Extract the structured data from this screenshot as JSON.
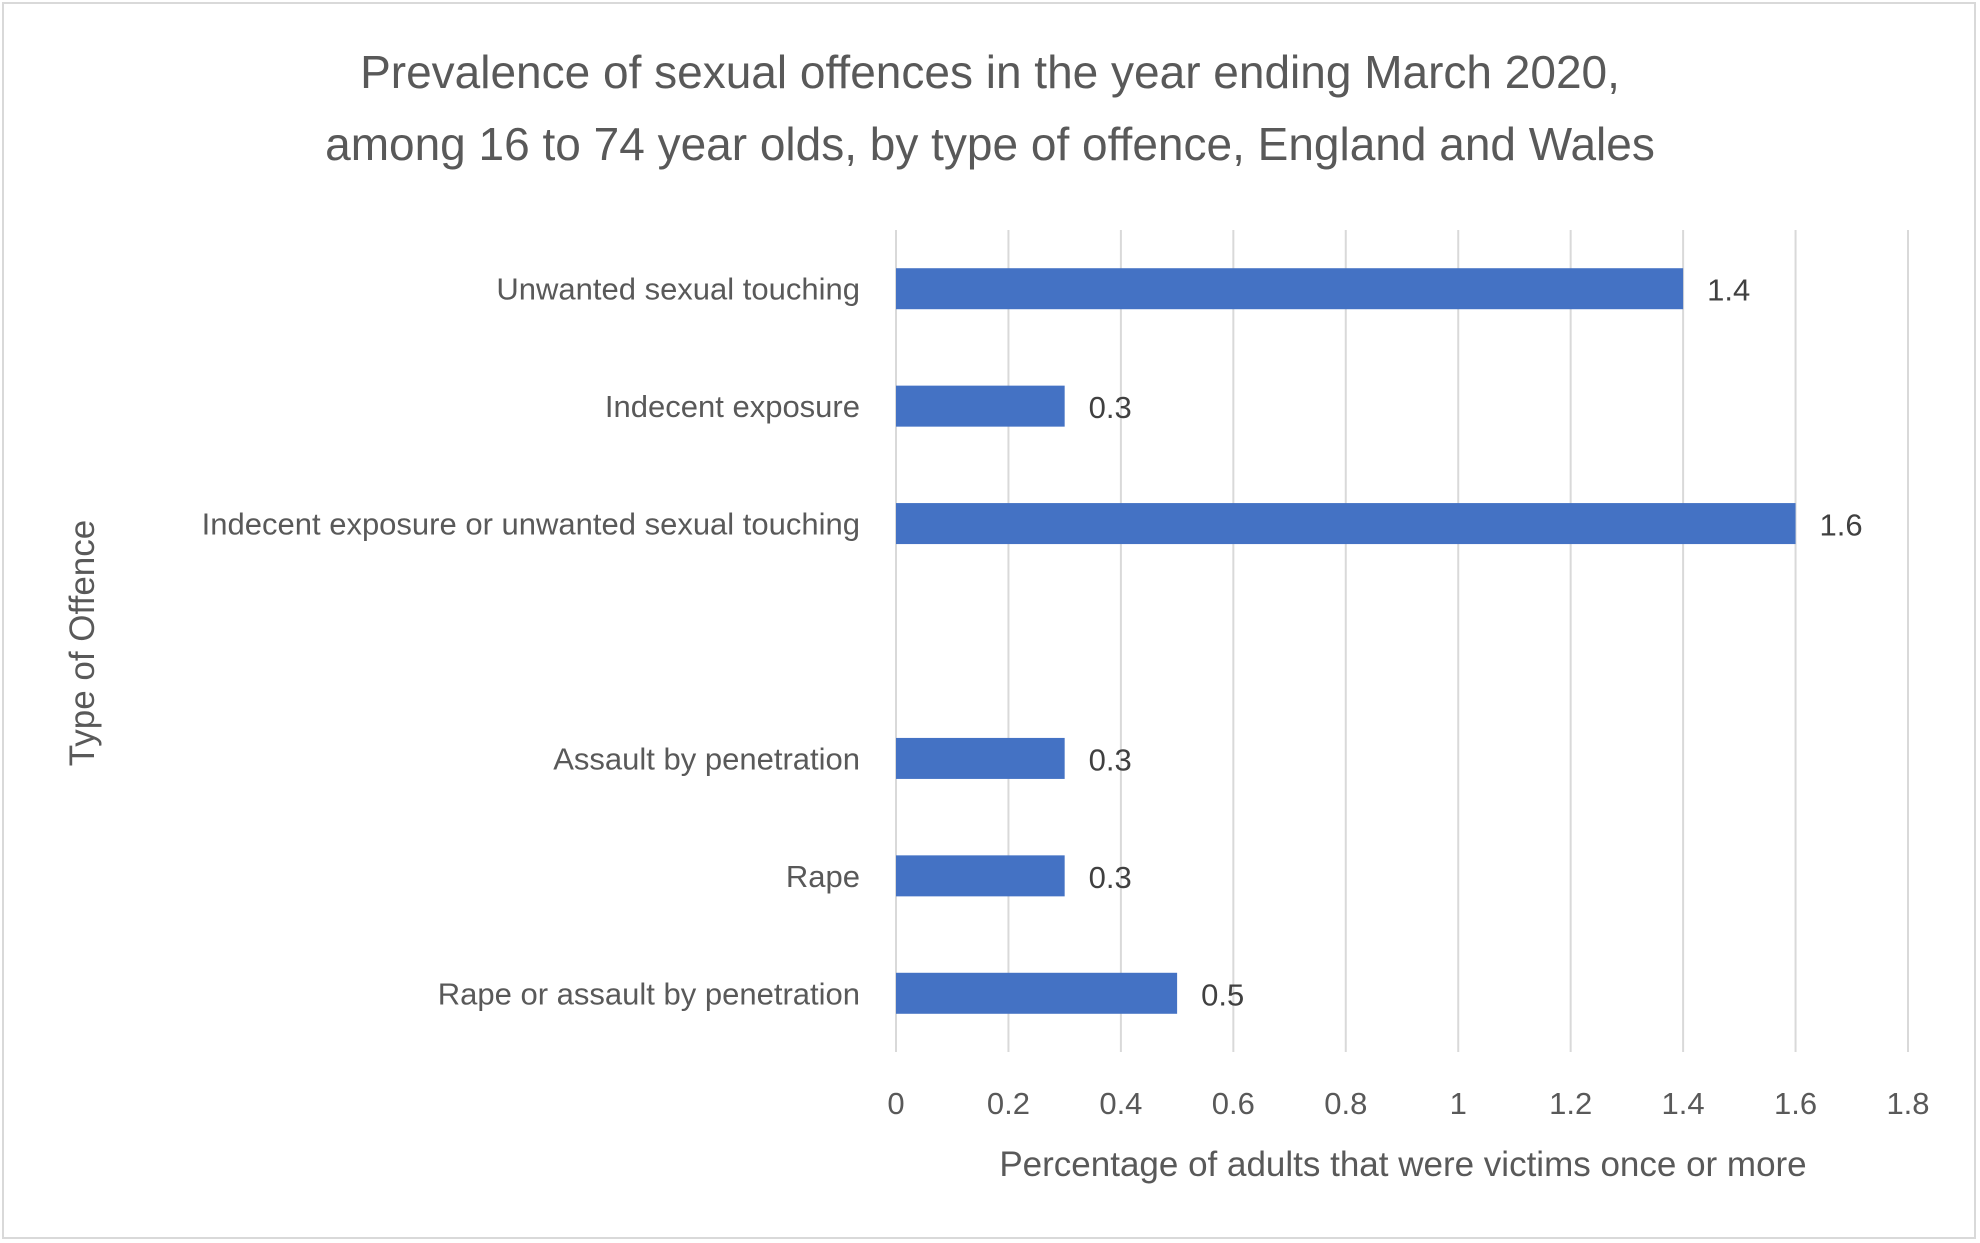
{
  "chart_data": {
    "type": "bar",
    "orientation": "horizontal",
    "title": [
      "Prevalence of sexual offences in the year ending March 2020,",
      "among 16 to 74 year olds, by type of offence, England and Wales"
    ],
    "xlabel": "Percentage of adults that were victims once or more",
    "ylabel": "Type of Offence",
    "xlim": [
      0,
      1.8
    ],
    "xticks": [
      "0",
      "0.2",
      "0.4",
      "0.6",
      "0.8",
      "1",
      "1.2",
      "1.4",
      "1.6",
      "1.8"
    ],
    "grid": true,
    "legend": "none",
    "bar_color": "#4472C4",
    "categories": [
      "Unwanted sexual touching",
      "Indecent exposure",
      "Indecent exposure or unwanted sexual touching",
      "",
      "Assault by penetration",
      "Rape",
      "Rape or assault by penetration"
    ],
    "values": [
      1.4,
      0.3,
      1.6,
      null,
      0.3,
      0.3,
      0.5
    ],
    "data_labels": [
      "1.4",
      "0.3",
      "1.6",
      "",
      "0.3",
      "0.3",
      "0.5"
    ]
  }
}
